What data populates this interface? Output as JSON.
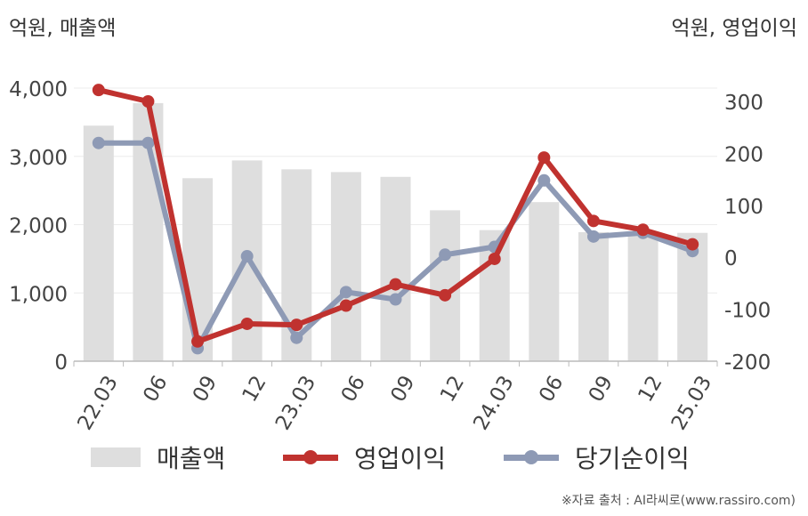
{
  "units": {
    "left": "억원, 매출액",
    "right": "억원, 영업이익"
  },
  "source": "※자료 출처 : AI라씨로(www.rassiro.com)",
  "legend": {
    "bar": "매출액",
    "line1": "영업이익",
    "line2": "당기순이익"
  },
  "colors": {
    "bar": "#dedede",
    "line1": "#c0322f",
    "line2": "#8e9ab5",
    "axis": "#bbbbbb",
    "grid": "#ececec"
  },
  "chart_data": {
    "type": "bar",
    "categories": [
      "22.03",
      "06",
      "09",
      "12",
      "23.03",
      "06",
      "09",
      "12",
      "24.03",
      "06",
      "09",
      "12",
      "25.03"
    ],
    "series": [
      {
        "name": "매출액",
        "type": "bar",
        "axis": "left",
        "values": [
          3450,
          3780,
          2680,
          2940,
          2810,
          2770,
          2700,
          2210,
          1920,
          2330,
          1890,
          1890,
          1880
        ]
      },
      {
        "name": "영업이익",
        "type": "line",
        "axis": "right",
        "values": [
          322,
          300,
          -162,
          -128,
          -130,
          -93,
          -52,
          -73,
          -3,
          192,
          70,
          53,
          25
        ]
      },
      {
        "name": "당기순이익",
        "type": "line",
        "axis": "right",
        "values": [
          220,
          220,
          -175,
          2,
          -155,
          -67,
          -81,
          5,
          20,
          148,
          40,
          47,
          12
        ]
      }
    ],
    "y_left": {
      "min": 0,
      "max": 4000,
      "ticks": [
        0,
        1000,
        2000,
        3000,
        4000
      ],
      "tick_labels": [
        "0",
        "1,000",
        "2,000",
        "3,000",
        "4,000"
      ]
    },
    "y_right": {
      "min": -200,
      "max": 300,
      "ticks": [
        -200,
        -100,
        0,
        100,
        200,
        300
      ],
      "tick_labels": [
        "-200",
        "-100",
        "0",
        "100",
        "200",
        "300"
      ]
    },
    "grid": true,
    "legend_position": "bottom"
  }
}
